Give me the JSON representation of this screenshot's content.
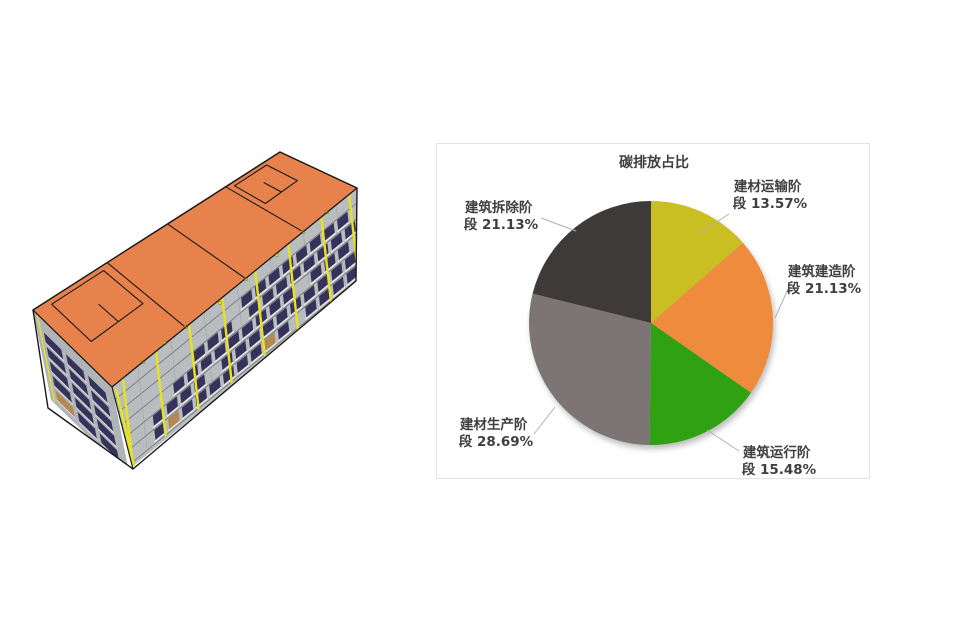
{
  "building_model": {
    "roof_color": "#e8824d",
    "wall_color": "#b9bdbf",
    "side_wall_color": "#b0b4b6",
    "window_color": "#35335c",
    "sill_color": "#f0f1f2",
    "accent_strip_color": "#e8e21f",
    "door_color": "#b58851",
    "outline_color": "#1a1a1a"
  },
  "chart_panel": {
    "border_color": "#e3e3e3",
    "background": "#ffffff",
    "text_color": "#3f3f3f",
    "leader_color": "#b0b0b0"
  },
  "chart_data": {
    "type": "pie",
    "title": "碳排放占比",
    "start_angle": "top (12 o'clock), clockwise",
    "legend": "none",
    "labels_position": "outside-with-leader-lines",
    "slices": [
      {
        "label": "建材运输阶段",
        "value": 13.57,
        "display": "建材运输阶段 13.57%",
        "color": "#c9be22",
        "lines": [
          "建材运输阶",
          "段 13.57%"
        ]
      },
      {
        "label": "建筑建造阶段",
        "value": 21.13,
        "display": "建筑建造阶段 21.13%",
        "color": "#ef8b3d",
        "lines": [
          "建筑建造阶",
          "段 21.13%"
        ]
      },
      {
        "label": "建筑运行阶段",
        "value": 15.48,
        "display": "建筑运行阶段 15.48%",
        "color": "#2fa112",
        "lines": [
          "建筑运行阶",
          "段 15.48%"
        ]
      },
      {
        "label": "建材生产阶段",
        "value": 28.69,
        "display": "建材生产阶段 28.69%",
        "color": "#7d7575",
        "lines": [
          "建材生产阶",
          "段 28.69%"
        ]
      },
      {
        "label": "建筑拆除阶段",
        "value": 21.13,
        "display": "建筑拆除阶段 21.13%",
        "color": "#3e3a3a",
        "lines": [
          "建筑拆除阶",
          "段 21.13%"
        ]
      }
    ]
  }
}
